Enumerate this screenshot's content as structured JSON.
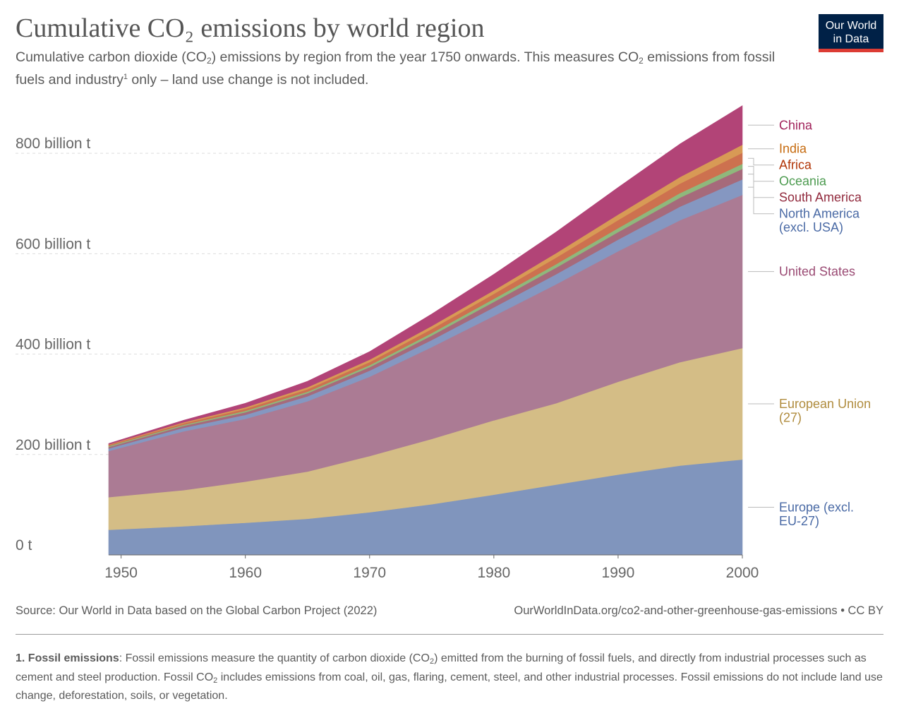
{
  "header": {
    "title": "Cumulative CO₂ emissions by world region",
    "subtitle_part1": "Cumulative carbon dioxide (CO",
    "subtitle_sub1": "2",
    "subtitle_part2": ") emissions by region from the year 1750 onwards. This measures CO",
    "subtitle_sub2": "2",
    "subtitle_part3": " emissions from fossil fuels and industry",
    "subtitle_sup": "1",
    "subtitle_part4": " only – land use change is not included.",
    "logo_line1": "Our World",
    "logo_line2": "in Data"
  },
  "footer": {
    "source": "Source: Our World in Data based on the Global Carbon Project (2022)",
    "url": "OurWorldInData.org/co2-and-other-greenhouse-gas-emissions • CC BY"
  },
  "footnote": {
    "label": "1. Fossil emissions",
    "text1": ": Fossil emissions measure the quantity of carbon dioxide (CO",
    "sub1": "2",
    "text2": ") emitted from the burning of fossil fuels, and directly from industrial processes such as cement and steel production. Fossil CO",
    "sub2": "2",
    "text3": " includes emissions from coal, oil, gas, flaring, cement, steel, and other industrial processes. Fossil emissions do not include land use change, deforestation, soils, or vegetation."
  },
  "colors": {
    "brand": "#002147",
    "brand_accent": "#dc3c34",
    "grid": "#dddddd",
    "axis": "#666666"
  },
  "chart_data": {
    "type": "area",
    "stacked": true,
    "x": [
      1949,
      1955,
      1960,
      1965,
      1970,
      1975,
      1980,
      1985,
      1990,
      1995,
      2000
    ],
    "xticks": [
      1950,
      1960,
      1970,
      1980,
      1990,
      2000
    ],
    "ylim": [
      0,
      900
    ],
    "yticks": [
      0,
      200,
      400,
      600,
      800
    ],
    "ytick_labels": [
      "0 t",
      "200 billion t",
      "400 billion t",
      "600 billion t",
      "800 billion t"
    ],
    "grid": "horizontal dashed",
    "legend": "right, labels at series ends",
    "series": [
      {
        "name": "Europe (excl. EU-27)",
        "label_lines": [
          "Europe (excl.",
          "EU-27)"
        ],
        "color": "#8095bd",
        "label_color": "#4a6aa5",
        "values": [
          50,
          57,
          64,
          72,
          85,
          101,
          120,
          140,
          160,
          178,
          190
        ]
      },
      {
        "name": "European Union (27)",
        "label_lines": [
          "European Union",
          "(27)"
        ],
        "color": "#d4bd86",
        "label_color": "#b08c3e",
        "values": [
          65,
          72,
          82,
          94,
          112,
          130,
          148,
          162,
          185,
          206,
          222
        ]
      },
      {
        "name": "United States",
        "label_lines": [
          "United States"
        ],
        "color": "#ab7b94",
        "label_color": "#9a4a73",
        "values": [
          92,
          117,
          125,
          140,
          158,
          183,
          208,
          237,
          260,
          283,
          305
        ]
      },
      {
        "name": "North America (excl. USA)",
        "label_lines": [
          "North America",
          "(excl. USA)"
        ],
        "color": "#8597c1",
        "label_color": "#4a6aa5",
        "values": [
          5,
          7,
          8,
          10,
          12,
          14,
          17,
          20,
          23,
          27,
          31
        ]
      },
      {
        "name": "South America",
        "label_lines": [
          "South America"
        ],
        "color": "#a66a7b",
        "label_color": "#922b3e",
        "values": [
          3,
          4,
          5,
          6,
          7,
          9,
          11,
          13,
          15,
          18,
          21
        ]
      },
      {
        "name": "Oceania",
        "label_lines": [
          "Oceania"
        ],
        "color": "#8fb87c",
        "label_color": "#4d9b50",
        "values": [
          2,
          2,
          3,
          3,
          4,
          5,
          6,
          7,
          8,
          9,
          10
        ]
      },
      {
        "name": "Africa",
        "label_lines": [
          "Africa"
        ],
        "color": "#cd714f",
        "label_color": "#b13507",
        "values": [
          2,
          3,
          4,
          5,
          6,
          8,
          10,
          13,
          16,
          19,
          22
        ]
      },
      {
        "name": "India",
        "label_lines": [
          "India"
        ],
        "color": "#d89a55",
        "label_color": "#c66b0f",
        "values": [
          1,
          2,
          3,
          4,
          5,
          6,
          7,
          9,
          11,
          13,
          16
        ]
      },
      {
        "name": "China",
        "label_lines": [
          "China"
        ],
        "color": "#b24477",
        "label_color": "#a2255d",
        "values": [
          2,
          4,
          8,
          12,
          16,
          24,
          32,
          42,
          54,
          66,
          78
        ]
      }
    ]
  }
}
